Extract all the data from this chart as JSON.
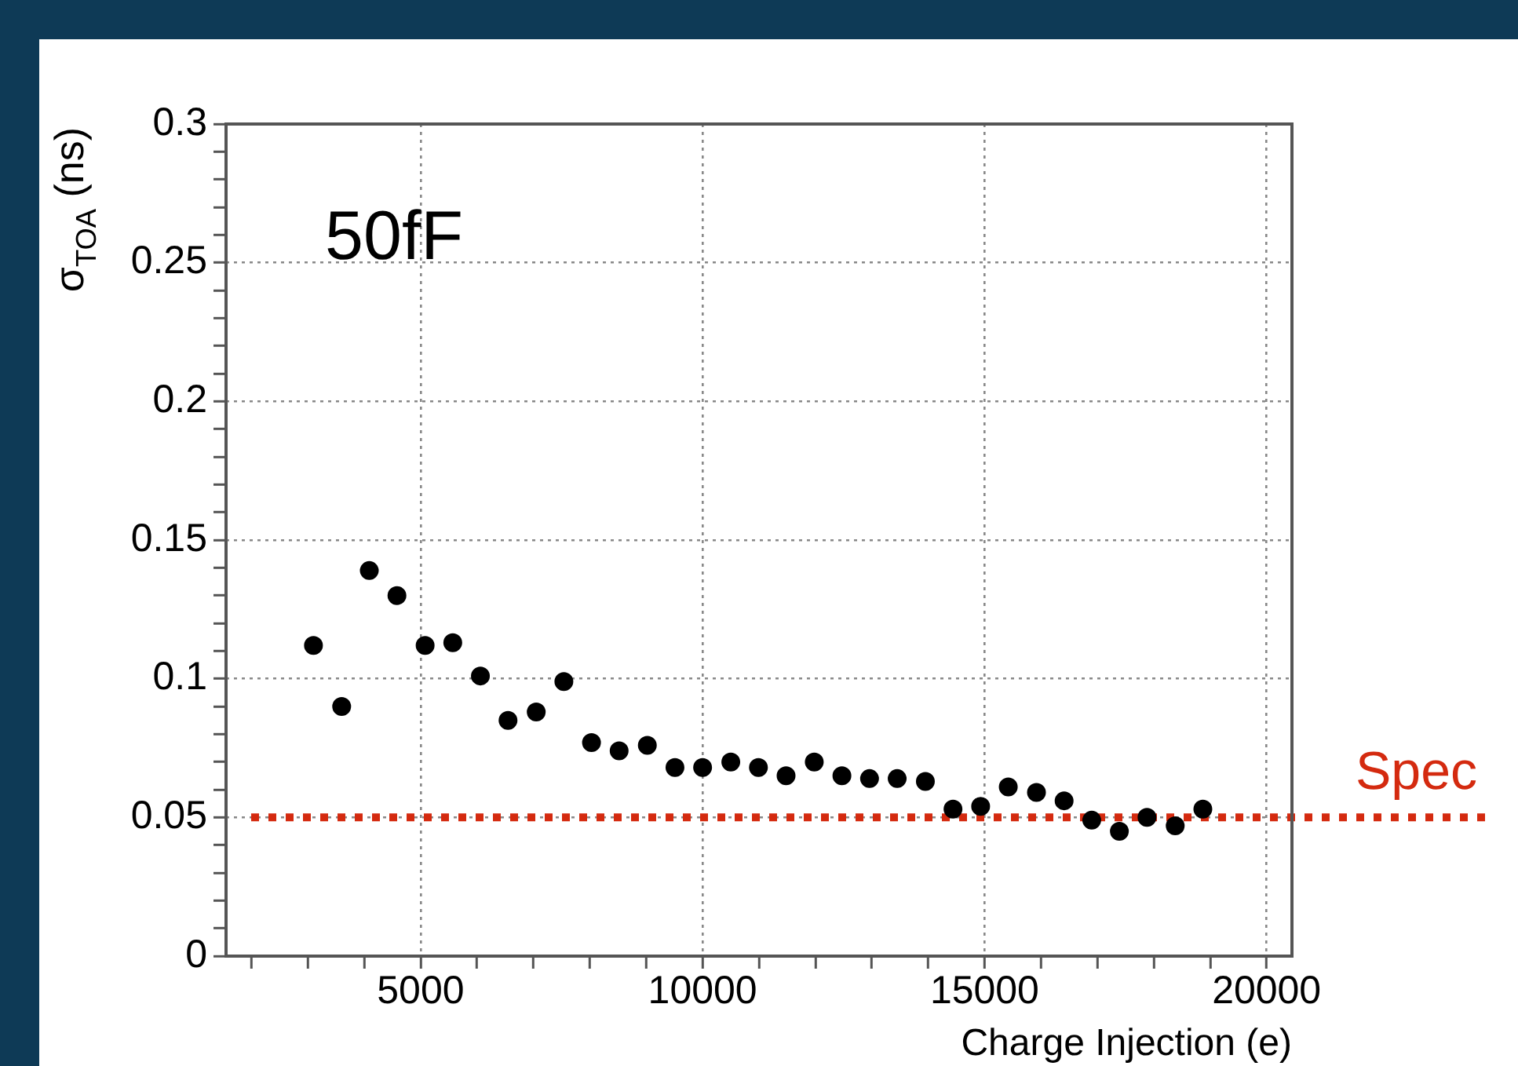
{
  "chart_data": {
    "type": "scatter",
    "xlabel": "Charge Injection (e)",
    "ylabel": "σ$_{TOA}$ (ns)",
    "annotations": [
      "50fF"
    ],
    "x": [
      3100,
      3600,
      4090,
      4580,
      5080,
      5570,
      6060,
      6550,
      7050,
      7540,
      8030,
      8520,
      9020,
      9510,
      10000,
      10500,
      10990,
      11480,
      11980,
      12470,
      12960,
      13450,
      13950,
      14440,
      14930,
      15420,
      15920,
      16410,
      16900,
      17390,
      17880,
      18380,
      18870
    ],
    "series": [
      {
        "color": "#000000",
        "values": [
          0.112,
          0.09,
          0.139,
          0.13,
          0.112,
          0.113,
          0.101,
          0.085,
          0.088,
          0.099,
          0.077,
          0.074,
          0.076,
          0.068,
          0.068,
          0.07,
          0.068,
          0.065,
          0.07,
          0.065,
          0.064,
          0.064,
          0.063,
          0.053,
          0.054,
          0.061,
          0.059,
          0.056,
          0.049,
          0.045,
          0.05,
          0.047,
          0.053
        ]
      }
    ],
    "marker": "circle",
    "grid": true,
    "legend": false,
    "xlim": [
      1550,
      20450
    ],
    "xticks": [
      {
        "value": 2000,
        "label": null
      },
      {
        "value": 3000,
        "label": null
      },
      {
        "value": 4000,
        "label": null
      },
      5000,
      {
        "value": 6000,
        "label": null
      },
      {
        "value": 7000,
        "label": null
      },
      {
        "value": 8000,
        "label": null
      },
      {
        "value": 9000,
        "label": null
      },
      10000,
      {
        "value": 11000,
        "label": null
      },
      {
        "value": 12000,
        "label": null
      },
      {
        "value": 13000,
        "label": null
      },
      {
        "value": 14000,
        "label": null
      },
      15000,
      {
        "value": 16000,
        "label": null
      },
      {
        "value": 17000,
        "label": null
      },
      {
        "value": 18000,
        "label": null
      },
      {
        "value": 19000,
        "label": null
      },
      20000
    ],
    "ylim": [
      0,
      0.3
    ],
    "yticks": [
      0,
      {
        "value": 0.01,
        "label": null
      },
      {
        "value": 0.02,
        "label": null
      },
      {
        "value": 0.03,
        "label": null
      },
      {
        "value": 0.04,
        "label": null
      },
      0.05,
      {
        "value": 0.06,
        "label": null
      },
      {
        "value": 0.07,
        "label": null
      },
      {
        "value": 0.08,
        "label": null
      },
      {
        "value": 0.09,
        "label": null
      },
      0.1,
      {
        "value": 0.11,
        "label": null
      },
      {
        "value": 0.12,
        "label": null
      },
      {
        "value": 0.13,
        "label": null
      },
      {
        "value": 0.14,
        "label": null
      },
      0.15,
      {
        "value": 0.16,
        "label": null
      },
      {
        "value": 0.17,
        "label": null
      },
      {
        "value": 0.18,
        "label": null
      },
      {
        "value": 0.19,
        "label": null
      },
      0.2,
      {
        "value": 0.21,
        "label": null
      },
      {
        "value": 0.22,
        "label": null
      },
      {
        "value": 0.23,
        "label": null
      },
      {
        "value": 0.24,
        "label": null
      },
      0.25,
      {
        "value": 0.26,
        "label": null
      },
      {
        "value": 0.27,
        "label": null
      },
      {
        "value": 0.28,
        "label": null
      },
      {
        "value": 0.29,
        "label": null
      },
      0.3
    ],
    "ref_lines": [
      {
        "axis": "y",
        "value": 0.05,
        "label": "Spec",
        "color": "#d42a0f",
        "line_style": "dotted"
      }
    ]
  }
}
